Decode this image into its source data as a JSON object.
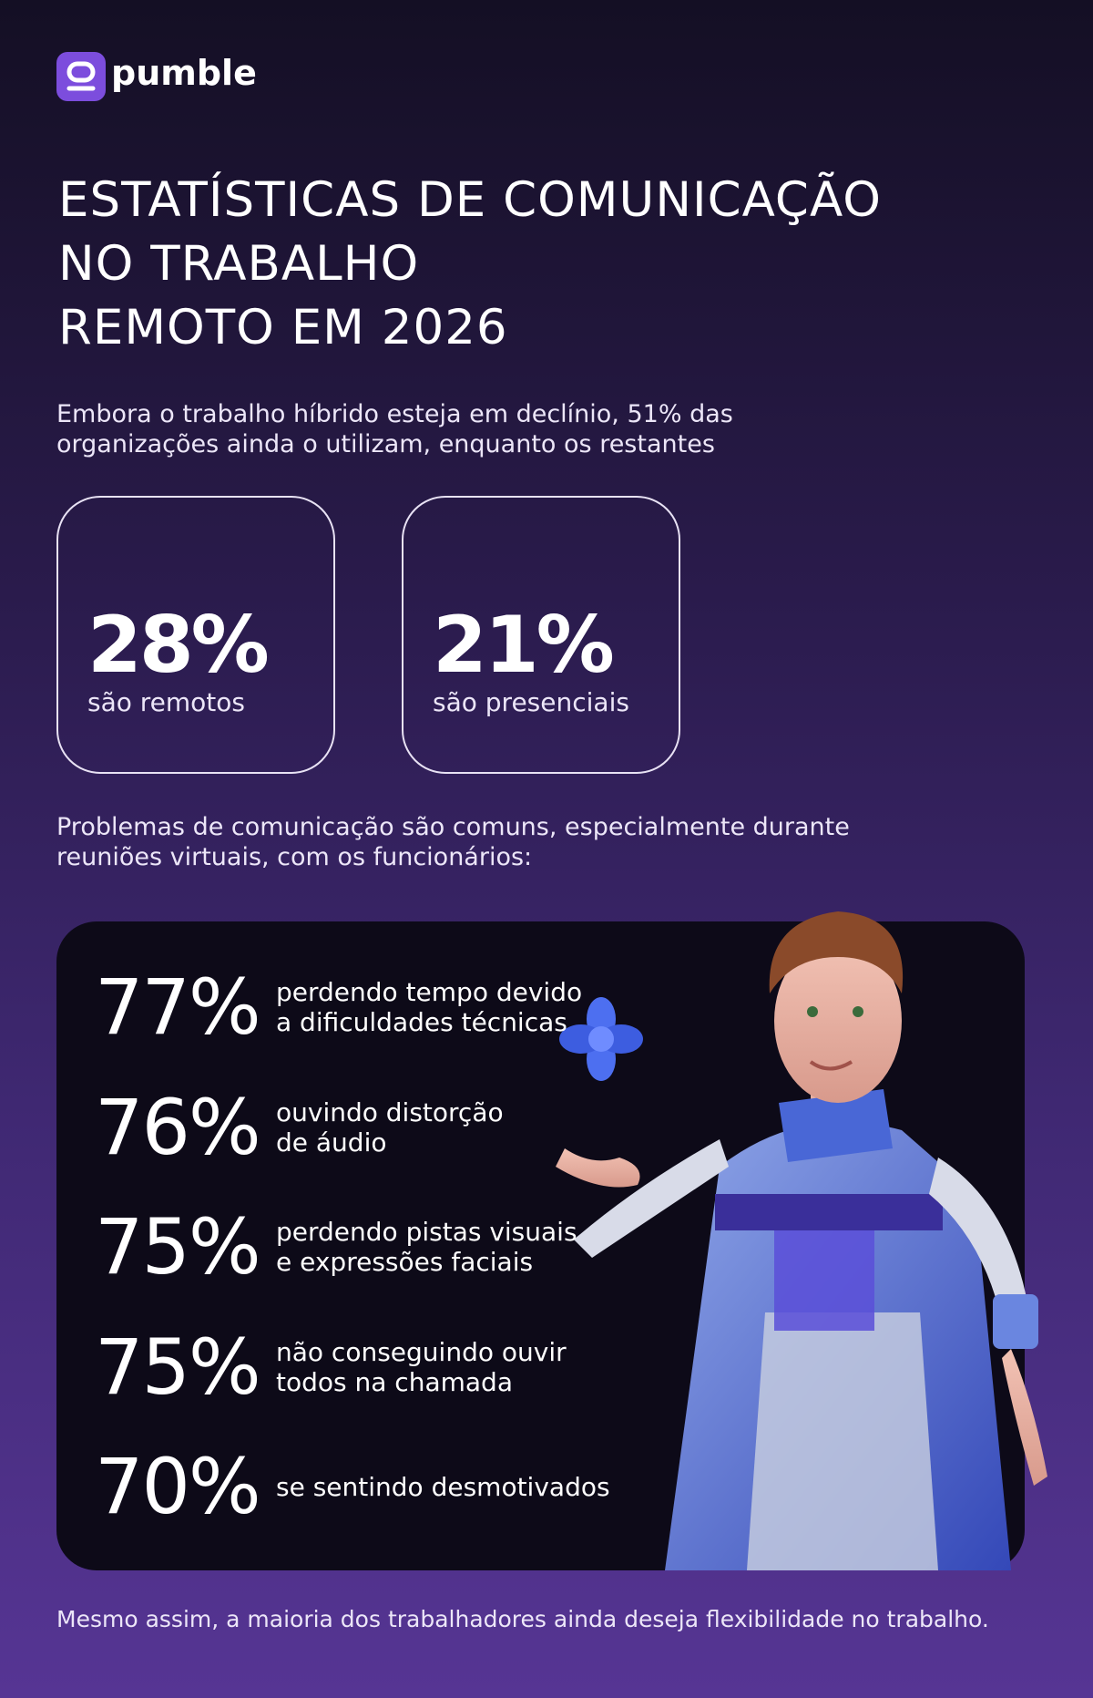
{
  "brand": "pumble",
  "title": [
    "ESTATÍSTICAS DE COMUNICAÇÃO",
    "NO TRABALHO",
    "REMOTO EM 2026"
  ],
  "intro": [
    "Embora o trabalho híbrido esteja em declínio, 51% das",
    "organizações ainda o utilizam, enquanto os restantes"
  ],
  "cards": [
    {
      "value": "28%",
      "label": "são remotos"
    },
    {
      "value": "21%",
      "label": "são presenciais"
    }
  ],
  "problems_intro": [
    "Problemas de comunicação são comuns, especialmente durante",
    "reuniões virtuais, com os funcionários:"
  ],
  "problems": [
    {
      "value": "77%",
      "text": [
        "perdendo tempo devido",
        "a dificuldades técnicas"
      ]
    },
    {
      "value": "76%",
      "text": [
        "ouvindo distorção",
        "de áudio"
      ]
    },
    {
      "value": "75%",
      "text": [
        "perdendo pistas visuais",
        "e expressões faciais"
      ]
    },
    {
      "value": "75%",
      "text": [
        "não conseguindo ouvir",
        "todos na chamada"
      ]
    },
    {
      "value": "70%",
      "text": [
        "se sentindo desmotivados"
      ]
    }
  ],
  "footer": "Mesmo assim, a maioria dos trabalhadores ainda deseja flexibilidade no trabalho."
}
